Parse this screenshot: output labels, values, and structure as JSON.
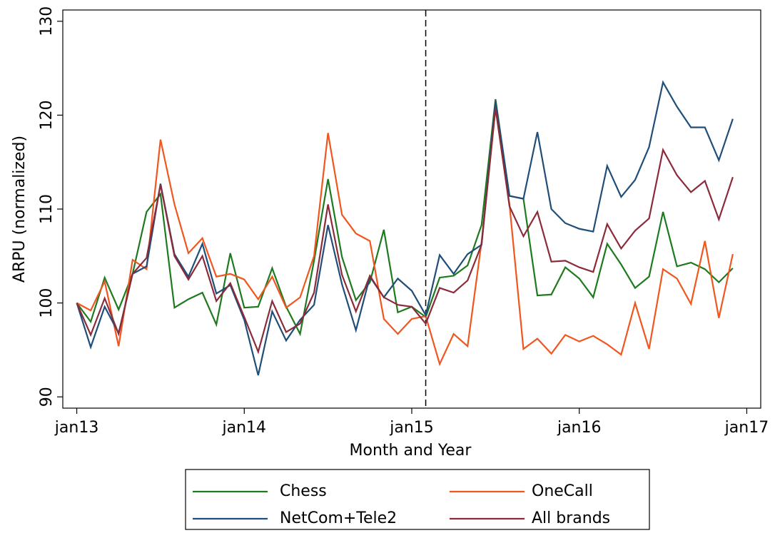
{
  "chart_data": {
    "type": "line",
    "y_label": "ARPU (normalized)",
    "x_label": "Month and Year",
    "x": [
      0,
      1,
      2,
      3,
      4,
      5,
      6,
      7,
      8,
      9,
      10,
      11,
      12,
      13,
      14,
      15,
      16,
      17,
      18,
      19,
      20,
      21,
      22,
      23,
      24,
      25,
      26,
      27,
      28,
      29,
      30,
      31,
      32,
      33,
      34,
      35,
      36,
      37,
      38,
      39,
      40,
      41,
      42,
      43,
      44,
      45,
      46,
      47
    ],
    "xlim": [
      -1,
      49
    ],
    "xticks": [
      {
        "value": 0,
        "label": "jan13"
      },
      {
        "value": 12,
        "label": "jan14"
      },
      {
        "value": 24,
        "label": "jan15"
      },
      {
        "value": 36,
        "label": "jan16"
      },
      {
        "value": 48,
        "label": "jan17"
      }
    ],
    "ylim": [
      88.8,
      131.2
    ],
    "yticks": [
      90,
      100,
      110,
      120,
      130
    ],
    "vline": 25,
    "series": [
      {
        "name": "Chess",
        "color": "#1e7a1e",
        "values": [
          100,
          98,
          102.7,
          99.3,
          103.1,
          109.7,
          111.6,
          99.5,
          100.4,
          101.1,
          97.7,
          105.3,
          99.5,
          99.6,
          103.7,
          99.6,
          96.7,
          104.5,
          113.2,
          104.9,
          100.3,
          102.2,
          107.8,
          99,
          99.6,
          98.5,
          102.7,
          102.9,
          104,
          108.3,
          121.7,
          111.4,
          111.1,
          100.8,
          100.9,
          103.8,
          102.6,
          100.6,
          106.3,
          104.1,
          101.6,
          102.8,
          109.7,
          103.9,
          104.3,
          103.6,
          102.2,
          103.7
        ]
      },
      {
        "name": "OneCall",
        "color": "#f0561e",
        "values": [
          100,
          99.2,
          102.3,
          95.4,
          104.6,
          103.6,
          117.4,
          110.5,
          105.3,
          106.9,
          102.8,
          103.1,
          102.5,
          100.4,
          102.8,
          99.5,
          100.6,
          105,
          118.1,
          109.4,
          107.4,
          106.6,
          98.3,
          96.7,
          98.3,
          98.6,
          93.5,
          96.7,
          95.4,
          106.5,
          120.7,
          110.5,
          95.1,
          96.2,
          94.6,
          96.6,
          95.9,
          96.5,
          95.6,
          94.5,
          100,
          95.1,
          103.6,
          102.6,
          99.9,
          106.6,
          98.4,
          105.2
        ]
      },
      {
        "name": "NetCom+Tele2",
        "color": "#1f4e79",
        "values": [
          100,
          95.3,
          99.6,
          96.8,
          103.1,
          103.9,
          112.7,
          105.2,
          102.8,
          106.3,
          101,
          101.9,
          98.2,
          92.3,
          99.1,
          96,
          98.2,
          99.8,
          108.3,
          102,
          97.1,
          102.8,
          100.6,
          102.6,
          101.3,
          98.7,
          105.1,
          103.1,
          105.2,
          106.2,
          121.5,
          111.4,
          111.1,
          118.2,
          110,
          108.5,
          107.9,
          107.6,
          114.6,
          111.3,
          113.1,
          116.6,
          123.5,
          120.9,
          118.7,
          118.7,
          115.2,
          119.6
        ]
      },
      {
        "name": "All brands",
        "color": "#8b2b3a",
        "values": [
          100,
          96.6,
          100.5,
          96.7,
          103.1,
          104.8,
          112.6,
          105,
          102.5,
          105,
          100.2,
          102.1,
          98.5,
          94.8,
          100.2,
          96.9,
          97.8,
          101.1,
          110.5,
          103,
          99.1,
          102.9,
          100.6,
          99.8,
          99.6,
          97.8,
          101.6,
          101.1,
          102.4,
          106.2,
          120.8,
          110.3,
          107.1,
          109.7,
          104.4,
          104.5,
          103.8,
          103.3,
          108.4,
          105.8,
          107.7,
          109,
          116.3,
          113.6,
          111.8,
          113,
          108.9,
          113.4
        ]
      }
    ]
  }
}
